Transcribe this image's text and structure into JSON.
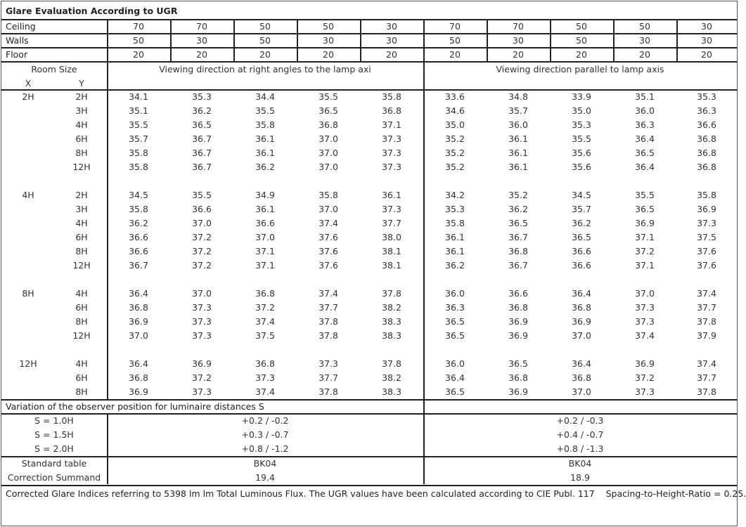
{
  "title": "Glare Evaluation According to UGR",
  "reflectances": [
    {
      "label": "Ceiling",
      "values": [
        "70",
        "70",
        "50",
        "50",
        "30",
        "70",
        "70",
        "50",
        "50",
        "30"
      ]
    },
    {
      "label": "Walls",
      "values": [
        "50",
        "30",
        "50",
        "30",
        "30",
        "50",
        "30",
        "50",
        "30",
        "30"
      ]
    },
    {
      "label": "Floor",
      "values": [
        "20",
        "20",
        "20",
        "20",
        "20",
        "20",
        "20",
        "20",
        "20",
        "20"
      ]
    }
  ],
  "room_size_label": "Room Size",
  "x_label": "X",
  "y_label": "Y",
  "direction_right_angles": "Viewing direction at right angles to the lamp axi",
  "direction_parallel": "Viewing direction parallel to lamp axis",
  "groups": [
    {
      "x": "2H",
      "rows": [
        {
          "y": "2H",
          "values": [
            "34.1",
            "35.3",
            "34.4",
            "35.5",
            "35.8",
            "33.6",
            "34.8",
            "33.9",
            "35.1",
            "35.3"
          ]
        },
        {
          "y": "3H",
          "values": [
            "35.1",
            "36.2",
            "35.5",
            "36.5",
            "36.8",
            "34.6",
            "35.7",
            "35.0",
            "36.0",
            "36.3"
          ]
        },
        {
          "y": "4H",
          "values": [
            "35.5",
            "36.5",
            "35.8",
            "36.8",
            "37.1",
            "35.0",
            "36.0",
            "35.3",
            "36.3",
            "36.6"
          ]
        },
        {
          "y": "6H",
          "values": [
            "35.7",
            "36.7",
            "36.1",
            "37.0",
            "37.3",
            "35.2",
            "36.1",
            "35.5",
            "36.4",
            "36.8"
          ]
        },
        {
          "y": "8H",
          "values": [
            "35.8",
            "36.7",
            "36.1",
            "37.0",
            "37.3",
            "35.2",
            "36.1",
            "35.6",
            "36.5",
            "36.8"
          ]
        },
        {
          "y": "12H",
          "values": [
            "35.8",
            "36.7",
            "36.2",
            "37.0",
            "37.3",
            "35.2",
            "36.1",
            "35.6",
            "36.4",
            "36.8"
          ]
        }
      ]
    },
    {
      "x": "4H",
      "rows": [
        {
          "y": "2H",
          "values": [
            "34.5",
            "35.5",
            "34.9",
            "35.8",
            "36.1",
            "34.2",
            "35.2",
            "34.5",
            "35.5",
            "35.8"
          ]
        },
        {
          "y": "3H",
          "values": [
            "35.8",
            "36.6",
            "36.1",
            "37.0",
            "37.3",
            "35.3",
            "36.2",
            "35.7",
            "36.5",
            "36.9"
          ]
        },
        {
          "y": "4H",
          "values": [
            "36.2",
            "37.0",
            "36.6",
            "37.4",
            "37.7",
            "35.8",
            "36.5",
            "36.2",
            "36.9",
            "37.3"
          ]
        },
        {
          "y": "6H",
          "values": [
            "36.6",
            "37.2",
            "37.0",
            "37.6",
            "38.0",
            "36.1",
            "36.7",
            "36.5",
            "37.1",
            "37.5"
          ]
        },
        {
          "y": "8H",
          "values": [
            "36.6",
            "37.2",
            "37.1",
            "37.6",
            "38.1",
            "36.1",
            "36.8",
            "36.6",
            "37.2",
            "37.6"
          ]
        },
        {
          "y": "12H",
          "values": [
            "36.7",
            "37.2",
            "37.1",
            "37.6",
            "38.1",
            "36.2",
            "36.7",
            "36.6",
            "37.1",
            "37.6"
          ]
        }
      ]
    },
    {
      "x": "8H",
      "rows": [
        {
          "y": "4H",
          "values": [
            "36.4",
            "37.0",
            "36.8",
            "37.4",
            "37.8",
            "36.0",
            "36.6",
            "36.4",
            "37.0",
            "37.4"
          ]
        },
        {
          "y": "6H",
          "values": [
            "36.8",
            "37.3",
            "37.2",
            "37.7",
            "38.2",
            "36.3",
            "36.8",
            "36.8",
            "37.3",
            "37.7"
          ]
        },
        {
          "y": "8H",
          "values": [
            "36.9",
            "37.3",
            "37.4",
            "37.8",
            "38.3",
            "36.5",
            "36.9",
            "36.9",
            "37.3",
            "37.8"
          ]
        },
        {
          "y": "12H",
          "values": [
            "37.0",
            "37.3",
            "37.5",
            "37.8",
            "38.3",
            "36.5",
            "36.9",
            "37.0",
            "37.4",
            "37.9"
          ]
        }
      ]
    },
    {
      "x": "12H",
      "rows": [
        {
          "y": "4H",
          "values": [
            "36.4",
            "36.9",
            "36.8",
            "37.3",
            "37.8",
            "36.0",
            "36.5",
            "36.4",
            "36.9",
            "37.4"
          ]
        },
        {
          "y": "6H",
          "values": [
            "36.8",
            "37.2",
            "37.3",
            "37.7",
            "38.2",
            "36.4",
            "36.8",
            "36.8",
            "37.2",
            "37.7"
          ]
        },
        {
          "y": "8H",
          "values": [
            "36.9",
            "37.3",
            "37.4",
            "37.8",
            "38.3",
            "36.5",
            "36.9",
            "37.0",
            "37.3",
            "37.8"
          ]
        }
      ]
    }
  ],
  "variation_title": "Variation of the observer position for luminaire distances S",
  "variations": [
    {
      "label": "S = 1.0H",
      "right_angles": "+0.2 / -0.2",
      "parallel": "+0.2 / -0.3"
    },
    {
      "label": "S = 1.5H",
      "right_angles": "+0.3 / -0.7",
      "parallel": "+0.4 / -0.7"
    },
    {
      "label": "S = 2.0H",
      "right_angles": "+0.8 / -1.2",
      "parallel": "+0.8 / -1.3"
    }
  ],
  "standard_table": {
    "label": "Standard table",
    "right_angles": "BK04",
    "parallel": "BK04"
  },
  "correction_summand": {
    "label": "Correction Summand",
    "right_angles": "19.4",
    "parallel": "18.9"
  },
  "footnote": "Corrected Glare Indices referring to 5398 lm lm Total Luminous Flux. The UGR values have been calculated according to CIE Publ. 117    Spacing-to-Height-Ratio = 0.25."
}
